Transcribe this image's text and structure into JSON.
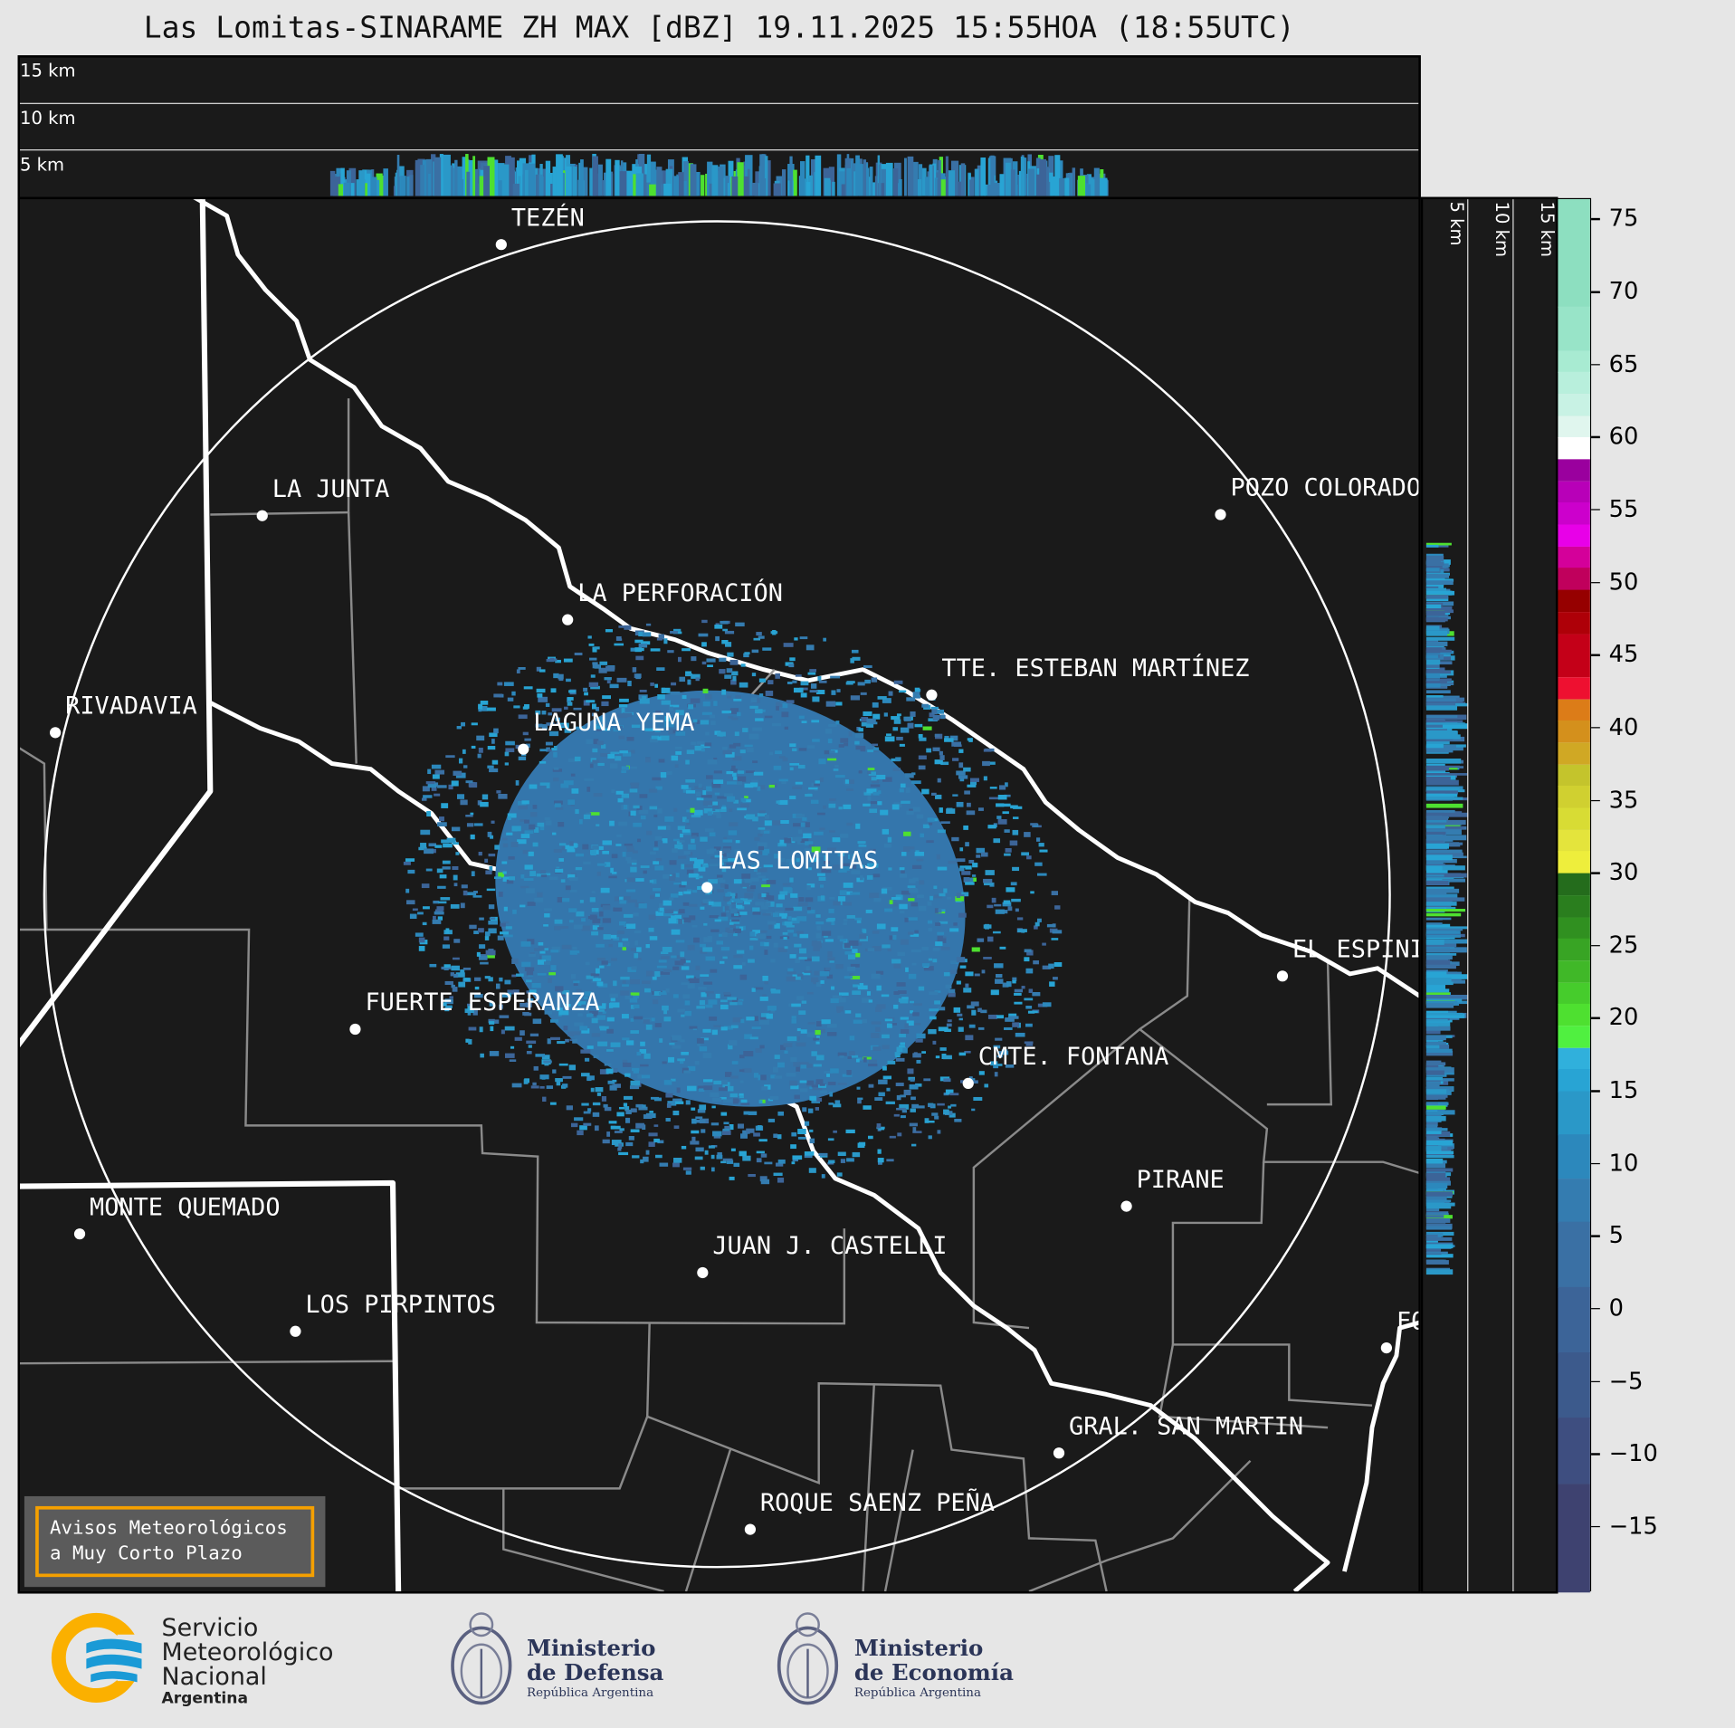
{
  "title": "Las Lomitas-SINARAME ZH MAX [dBZ] 19.11.2025 15:55HOA (18:55UTC)",
  "top_profile": {
    "labels": [
      "15 km",
      "10 km",
      "5 km"
    ]
  },
  "side_profile": {
    "labels": [
      "5 km",
      "10 km",
      "15 km"
    ]
  },
  "cities": [
    {
      "name": "TEZÉN"
    },
    {
      "name": "LA JUNTA"
    },
    {
      "name": "POZO COLORADO"
    },
    {
      "name": "LA PERFORACIÓN"
    },
    {
      "name": "TTE. ESTEBAN MARTÍNEZ"
    },
    {
      "name": "RIVADAVIA"
    },
    {
      "name": "LAGUNA YEMA"
    },
    {
      "name": "LAS LOMITAS"
    },
    {
      "name": "EL ESPINILLO"
    },
    {
      "name": "FUERTE ESPERANZA"
    },
    {
      "name": "CMTE. FONTANA"
    },
    {
      "name": "PIRANE"
    },
    {
      "name": "MONTE QUEMADO"
    },
    {
      "name": "JUAN J. CASTELLI"
    },
    {
      "name": "LOS PIRPINTOS"
    },
    {
      "name": "GRAL. SAN MARTIN"
    },
    {
      "name": "ROQUE SAENZ PEÑA"
    },
    {
      "name": "FORMOSA"
    }
  ],
  "colorbar": {
    "unit": "dBZ",
    "range": [
      -19.5,
      76.4
    ],
    "ticks": [
      "75",
      "70",
      "65",
      "60",
      "55",
      "50",
      "45",
      "40",
      "35",
      "30",
      "25",
      "20",
      "15",
      "10",
      "5",
      "0",
      "−5",
      "−10",
      "−15"
    ],
    "tick_values": [
      75,
      70,
      65,
      60,
      55,
      50,
      45,
      40,
      35,
      30,
      25,
      20,
      15,
      10,
      5,
      0,
      -5,
      -10,
      -15
    ],
    "bands": [
      [
        69,
        76.4,
        "#8ddfc0"
      ],
      [
        66,
        69,
        "#98e4c8"
      ],
      [
        64.5,
        66,
        "#a8ebd2"
      ],
      [
        63,
        64.5,
        "#b8efdc"
      ],
      [
        61.5,
        63,
        "#c8f2e4"
      ],
      [
        60,
        61.5,
        "#e0f6ee"
      ],
      [
        58.5,
        60,
        "#ffffff"
      ],
      [
        57,
        58.5,
        "#9a009e"
      ],
      [
        55.5,
        57,
        "#b800b8"
      ],
      [
        54,
        55.5,
        "#cc00cc"
      ],
      [
        52.5,
        54,
        "#e800e8"
      ],
      [
        51,
        52.5,
        "#d4009a"
      ],
      [
        49.5,
        51,
        "#c0005c"
      ],
      [
        48,
        49.5,
        "#960000"
      ],
      [
        46.5,
        48,
        "#ae0008"
      ],
      [
        43.5,
        46.5,
        "#c40018"
      ],
      [
        42,
        43.5,
        "#ee1030"
      ],
      [
        40.5,
        42,
        "#dc7c18"
      ],
      [
        39,
        40.5,
        "#d4901c"
      ],
      [
        37.5,
        39,
        "#d0a824"
      ],
      [
        36,
        37.5,
        "#c4c42c"
      ],
      [
        34.5,
        36,
        "#d0d030"
      ],
      [
        33,
        34.5,
        "#d8dc34"
      ],
      [
        31.5,
        33,
        "#e4e43c"
      ],
      [
        30,
        31.5,
        "#eeee3c"
      ],
      [
        28.5,
        30,
        "#246c1c"
      ],
      [
        27,
        28.5,
        "#2a7e1e"
      ],
      [
        25.5,
        27,
        "#309020"
      ],
      [
        24,
        25.5,
        "#38a424"
      ],
      [
        22.5,
        24,
        "#40b828"
      ],
      [
        21,
        22.5,
        "#46cc2c"
      ],
      [
        19.5,
        21,
        "#4ee030"
      ],
      [
        18,
        19.5,
        "#50f040"
      ],
      [
        16.5,
        18,
        "#30b0dc"
      ],
      [
        15,
        16.5,
        "#28a4d4"
      ],
      [
        12,
        15,
        "#2a98c8"
      ],
      [
        9,
        12,
        "#2c88bc"
      ],
      [
        6,
        9,
        "#347cb0"
      ],
      [
        1.5,
        6,
        "#3a70a4"
      ],
      [
        -3,
        1.5,
        "#3c6498"
      ],
      [
        -7.5,
        -3,
        "#3c5a8c"
      ],
      [
        -12,
        -7.5,
        "#3e4e80"
      ],
      [
        -19.5,
        -12,
        "#3e4270"
      ]
    ]
  },
  "notice": {
    "line1": "Avisos Meteorológicos",
    "line2": "a Muy Corto Plazo"
  },
  "logos": {
    "smn": [
      "Servicio",
      "Meteorológico",
      "Nacional",
      "Argentina"
    ],
    "defensa": [
      "Ministerio",
      "de Defensa",
      "República Argentina"
    ],
    "economia": [
      "Ministerio",
      "de Economía",
      "República Argentina"
    ]
  },
  "colors": {
    "background": "#e6e6e6",
    "map": "#1a1a1a",
    "notice_border": "#f5a000",
    "smn_yellow": "#fbb000",
    "smn_blue": "#1a9ad6"
  }
}
